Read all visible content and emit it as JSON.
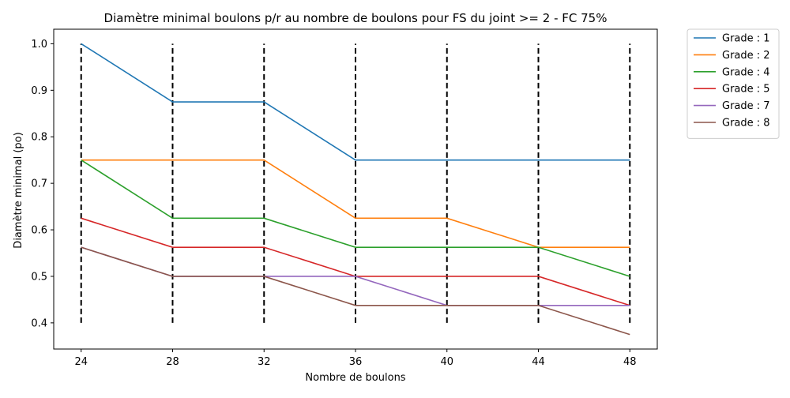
{
  "chart_data": {
    "type": "line",
    "title": "Diamètre minimal boulons p/r au nombre de boulons pour FS du joint >= 2 - FC 75%",
    "xlabel": "Nombre de boulons",
    "ylabel": "Diamètre minimal (po)",
    "x": [
      24,
      28,
      32,
      36,
      40,
      44,
      48
    ],
    "x_ticks": [
      "24",
      "28",
      "32",
      "36",
      "40",
      "44",
      "48"
    ],
    "ylim": [
      0.375,
      1.0
    ],
    "y_ticks": [
      "0.4",
      "0.5",
      "0.6",
      "0.7",
      "0.8",
      "0.9",
      "1.0"
    ],
    "grid": false,
    "legend_position": "outside top-right",
    "vlines": {
      "x": [
        24,
        28,
        32,
        36,
        40,
        44,
        48
      ],
      "ymin": 0.4,
      "ymax": 1.0,
      "style": "dashed",
      "color": "#000000"
    },
    "series": [
      {
        "name": "Grade : 1",
        "color": "#1f77b4",
        "values": [
          1.0,
          0.875,
          0.875,
          0.75,
          0.75,
          0.75,
          0.75
        ]
      },
      {
        "name": "Grade : 2",
        "color": "#ff7f0e",
        "values": [
          0.75,
          0.75,
          0.75,
          0.625,
          0.625,
          0.5625,
          0.5625
        ]
      },
      {
        "name": "Grade : 4",
        "color": "#2ca02c",
        "values": [
          0.75,
          0.625,
          0.625,
          0.5625,
          0.5625,
          0.5625,
          0.5
        ]
      },
      {
        "name": "Grade : 5",
        "color": "#d62728",
        "values": [
          0.625,
          0.5625,
          0.5625,
          0.5,
          0.5,
          0.5,
          0.4375
        ]
      },
      {
        "name": "Grade : 7",
        "color": "#9467bd",
        "values": [
          0.5625,
          0.5,
          0.5,
          0.5,
          0.4375,
          0.4375,
          0.4375
        ]
      },
      {
        "name": "Grade : 8",
        "color": "#8c564b",
        "values": [
          0.5625,
          0.5,
          0.5,
          0.4375,
          0.4375,
          0.4375,
          0.375
        ]
      }
    ]
  }
}
